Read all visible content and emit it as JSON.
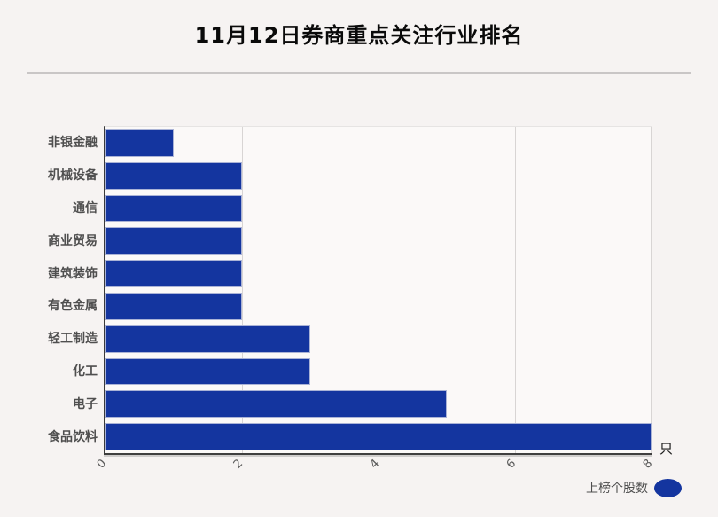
{
  "page": {
    "background": "#f6f3f2"
  },
  "header": {
    "title": "11月12日券商重点关注行业排名"
  },
  "chart_data": {
    "type": "bar",
    "orientation": "horizontal",
    "title": "11月12日券商重点关注行业排名",
    "categories": [
      "非银金融",
      "机械设备",
      "通信",
      "商业贸易",
      "建筑装饰",
      "有色金属",
      "轻工制造",
      "化工",
      "电子",
      "食品饮料"
    ],
    "series": [
      {
        "name": "上榜个股数",
        "values": [
          1,
          2,
          2,
          2,
          2,
          2,
          3,
          3,
          5,
          8
        ]
      }
    ],
    "xticks": [
      0,
      2,
      4,
      6,
      8
    ],
    "xlim": [
      0,
      8
    ],
    "x_unit": "只",
    "grid": true,
    "legend_position": "bottom-right",
    "bar_color": "#14359f",
    "plot_background": "#fbf9f8"
  },
  "axis": {
    "unit_label": "只"
  },
  "legend": {
    "label": "上榜个股数",
    "marker_color": "#14359f"
  }
}
